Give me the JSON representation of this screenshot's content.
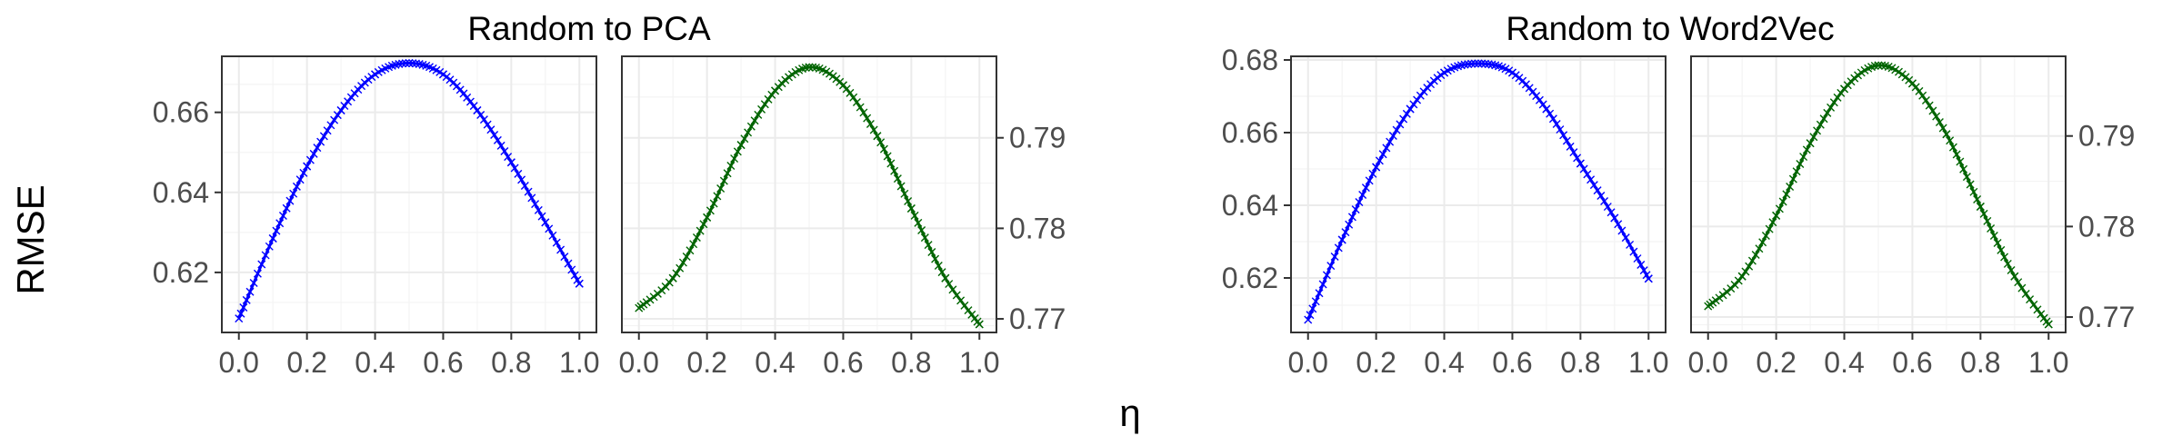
{
  "figure": {
    "ylabel": "RMSE",
    "xlabel": "η"
  },
  "chart_data": [
    {
      "type": "line",
      "title": "Random to PCA",
      "side": "left",
      "color": "#0000ff",
      "x": [
        0.0,
        0.1,
        0.2,
        0.3,
        0.4,
        0.5,
        0.6,
        0.7,
        0.8,
        0.9,
        1.0
      ],
      "y": [
        0.6085,
        0.6285,
        0.6465,
        0.6605,
        0.6695,
        0.6723,
        0.6695,
        0.6605,
        0.6475,
        0.6325,
        0.6172
      ],
      "xlim": [
        -0.05,
        1.05
      ],
      "ylim": [
        0.605,
        0.674
      ],
      "xticks": [
        0.0,
        0.2,
        0.4,
        0.6,
        0.8,
        1.0
      ],
      "xtick_labels": [
        "0.0",
        "0.2",
        "0.4",
        "0.6",
        "0.8",
        "1.0"
      ],
      "yticks": [
        0.62,
        0.64,
        0.66
      ],
      "ytick_labels": [
        "0.62",
        "0.64",
        "0.66"
      ],
      "grid": true
    },
    {
      "type": "line",
      "title": "",
      "side": "right",
      "color": "#006400",
      "x": [
        0.0,
        0.1,
        0.2,
        0.3,
        0.4,
        0.5,
        0.6,
        0.7,
        0.8,
        0.9,
        1.0
      ],
      "y": [
        0.7712,
        0.7745,
        0.7812,
        0.7892,
        0.7952,
        0.7978,
        0.7958,
        0.7902,
        0.7822,
        0.7745,
        0.7694
      ],
      "xlim": [
        -0.05,
        1.05
      ],
      "ylim": [
        0.7685,
        0.799
      ],
      "xticks": [
        0.0,
        0.2,
        0.4,
        0.6,
        0.8,
        1.0
      ],
      "xtick_labels": [
        "0.0",
        "0.2",
        "0.4",
        "0.6",
        "0.8",
        "1.0"
      ],
      "yticks": [
        0.77,
        0.78,
        0.79
      ],
      "ytick_labels": [
        "0.77",
        "0.78",
        "0.79"
      ],
      "grid": true
    },
    {
      "type": "line",
      "title": "Random to Word2Vec",
      "side": "left",
      "color": "#0000ff",
      "x": [
        0.0,
        0.1,
        0.2,
        0.3,
        0.4,
        0.5,
        0.6,
        0.7,
        0.8,
        0.9,
        1.0
      ],
      "y": [
        0.6085,
        0.6305,
        0.6505,
        0.6665,
        0.6765,
        0.679,
        0.6765,
        0.6665,
        0.6515,
        0.6365,
        0.6198
      ],
      "xlim": [
        -0.05,
        1.05
      ],
      "ylim": [
        0.605,
        0.681
      ],
      "xticks": [
        0.0,
        0.2,
        0.4,
        0.6,
        0.8,
        1.0
      ],
      "xtick_labels": [
        "0.0",
        "0.2",
        "0.4",
        "0.6",
        "0.8",
        "1.0"
      ],
      "yticks": [
        0.62,
        0.64,
        0.66,
        0.68
      ],
      "ytick_labels": [
        "0.62",
        "0.64",
        "0.66",
        "0.68"
      ],
      "grid": true
    },
    {
      "type": "line",
      "title": "",
      "side": "right",
      "color": "#006400",
      "x": [
        0.0,
        0.1,
        0.2,
        0.3,
        0.4,
        0.5,
        0.6,
        0.7,
        0.8,
        0.9,
        1.0
      ],
      "y": [
        0.7712,
        0.7745,
        0.7812,
        0.7892,
        0.7952,
        0.7978,
        0.7958,
        0.7902,
        0.7822,
        0.7745,
        0.7692
      ],
      "xlim": [
        -0.05,
        1.05
      ],
      "ylim": [
        0.7683,
        0.7988
      ],
      "xticks": [
        0.0,
        0.2,
        0.4,
        0.6,
        0.8,
        1.0
      ],
      "xtick_labels": [
        "0.0",
        "0.2",
        "0.4",
        "0.6",
        "0.8",
        "1.0"
      ],
      "yticks": [
        0.77,
        0.78,
        0.79
      ],
      "ytick_labels": [
        "0.77",
        "0.78",
        "0.79"
      ],
      "grid": true
    }
  ]
}
